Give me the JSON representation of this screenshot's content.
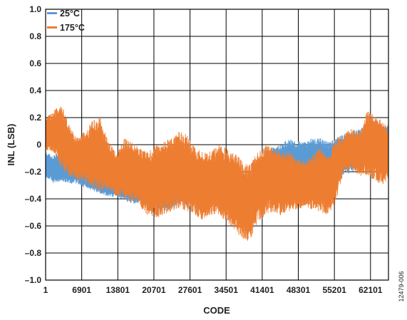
{
  "figure_id": "12479-006",
  "colors": {
    "series_25c": "#5b9bd5",
    "series_175c": "#ed7d31",
    "grid": "#000000"
  },
  "chart_data": {
    "type": "line",
    "title": "",
    "xlabel": "CODE",
    "ylabel": "INL (LSB)",
    "xlim": [
      1,
      65535
    ],
    "ylim": [
      -1.0,
      1.0
    ],
    "grid": true,
    "legend_position": "top-left",
    "x_ticks": [
      1,
      6901,
      13801,
      20701,
      27601,
      34501,
      41401,
      48301,
      55201,
      62101
    ],
    "x_tick_labels": [
      "1",
      "6901",
      "13801",
      "20701",
      "27601",
      "34501",
      "41401",
      "48301",
      "55201",
      "62101"
    ],
    "y_ticks": [
      -1.0,
      -0.8,
      -0.6,
      -0.4,
      -0.2,
      0,
      0.2,
      0.4,
      0.6,
      0.8,
      1.0
    ],
    "y_tick_labels": [
      "–1.0",
      "–0.8",
      "–0.6",
      "–0.4",
      "–0.2",
      "0",
      "0.2",
      "0.4",
      "0.6",
      "0.8",
      "1.0"
    ],
    "x": [
      1,
      1500,
      3000,
      4500,
      6000,
      7500,
      9000,
      10500,
      12000,
      13500,
      15000,
      16500,
      18000,
      19500,
      21000,
      22500,
      24000,
      25500,
      27000,
      28500,
      30000,
      31500,
      33000,
      34500,
      36000,
      37500,
      39000,
      40500,
      42000,
      43500,
      45000,
      46500,
      48000,
      49500,
      51000,
      52500,
      54000,
      55500,
      57000,
      58500,
      60000,
      61500,
      63000,
      64500,
      65535
    ],
    "series": [
      {
        "name": "25°C",
        "color": "#5b9bd5",
        "upper": [
          -0.05,
          -0.08,
          -0.05,
          -0.08,
          -0.07,
          -0.12,
          -0.15,
          -0.15,
          -0.18,
          -0.17,
          -0.2,
          -0.2,
          -0.22,
          -0.22,
          -0.2,
          -0.22,
          -0.2,
          -0.18,
          -0.18,
          -0.15,
          -0.17,
          -0.2,
          -0.2,
          -0.15,
          -0.12,
          -0.2,
          -0.25,
          -0.22,
          -0.05,
          -0.02,
          0.0,
          0.05,
          0.03,
          0.02,
          0.05,
          0.05,
          0.02,
          0.05,
          0.08,
          0.1,
          0.12,
          0.15,
          0.2,
          0.12,
          0.15
        ],
        "lower": [
          -0.25,
          -0.3,
          -0.28,
          -0.3,
          -0.3,
          -0.33,
          -0.35,
          -0.38,
          -0.4,
          -0.4,
          -0.42,
          -0.45,
          -0.45,
          -0.48,
          -0.48,
          -0.5,
          -0.5,
          -0.45,
          -0.48,
          -0.42,
          -0.45,
          -0.45,
          -0.45,
          -0.42,
          -0.42,
          -0.48,
          -0.5,
          -0.48,
          -0.32,
          -0.3,
          -0.28,
          -0.3,
          -0.32,
          -0.3,
          -0.28,
          -0.28,
          -0.3,
          -0.25,
          -0.25,
          -0.22,
          -0.2,
          -0.2,
          -0.18,
          -0.22,
          -0.2
        ]
      },
      {
        "name": "175°C",
        "color": "#ed7d31",
        "upper": [
          0.2,
          0.25,
          0.3,
          0.15,
          0.05,
          0.1,
          0.18,
          0.2,
          0.02,
          -0.05,
          0.05,
          0.02,
          -0.02,
          -0.05,
          0.0,
          0.02,
          0.05,
          0.1,
          0.08,
          -0.02,
          -0.05,
          -0.05,
          0.0,
          -0.02,
          -0.05,
          -0.12,
          -0.15,
          -0.05,
          0.0,
          -0.02,
          -0.05,
          -0.05,
          -0.1,
          -0.12,
          -0.08,
          -0.02,
          -0.08,
          0.05,
          0.08,
          0.12,
          0.1,
          0.25,
          0.22,
          0.18,
          0.1
        ],
        "lower": [
          -0.05,
          -0.08,
          -0.2,
          -0.25,
          -0.28,
          -0.3,
          -0.35,
          -0.38,
          -0.35,
          -0.4,
          -0.42,
          -0.45,
          -0.48,
          -0.55,
          -0.58,
          -0.55,
          -0.52,
          -0.5,
          -0.52,
          -0.55,
          -0.58,
          -0.55,
          -0.55,
          -0.6,
          -0.65,
          -0.72,
          -0.75,
          -0.6,
          -0.55,
          -0.52,
          -0.55,
          -0.52,
          -0.5,
          -0.48,
          -0.5,
          -0.52,
          -0.55,
          -0.45,
          -0.22,
          -0.2,
          -0.25,
          -0.25,
          -0.3,
          -0.32,
          -0.28
        ]
      }
    ]
  }
}
